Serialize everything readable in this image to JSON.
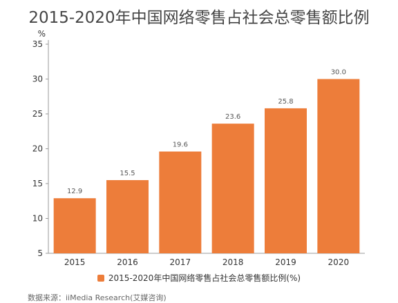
{
  "title": "2015-2020年中国网络零售占社会总零售额比例",
  "source": "数据来源：iiMedia Research(艾媒咨询)",
  "colors": {
    "bar": "#ED7D3A",
    "axis": "#999999",
    "text": "#333333",
    "label": "#555555"
  },
  "chart_data": {
    "type": "bar",
    "title": "2015-2020年中国网络零售占社会总零售额比例",
    "ylabel": "%",
    "xlabel": "",
    "categories": [
      "2015",
      "2016",
      "2017",
      "2018",
      "2019",
      "2020"
    ],
    "series": [
      {
        "name": "2015-2020年中国网络零售占社会总零售额比例(%)",
        "values": [
          12.9,
          15.5,
          19.6,
          23.6,
          25.8,
          30.0
        ],
        "labels": [
          "12.9",
          "15.5",
          "19.6",
          "23.6",
          "25.8",
          "30.0"
        ]
      }
    ],
    "ylim": [
      5,
      35
    ],
    "yticks": [
      "5",
      "10",
      "15",
      "20",
      "25",
      "30",
      "35"
    ],
    "ytick_values": [
      5,
      10,
      15,
      20,
      25,
      30,
      35
    ],
    "grid": false,
    "legend_position": "bottom"
  }
}
